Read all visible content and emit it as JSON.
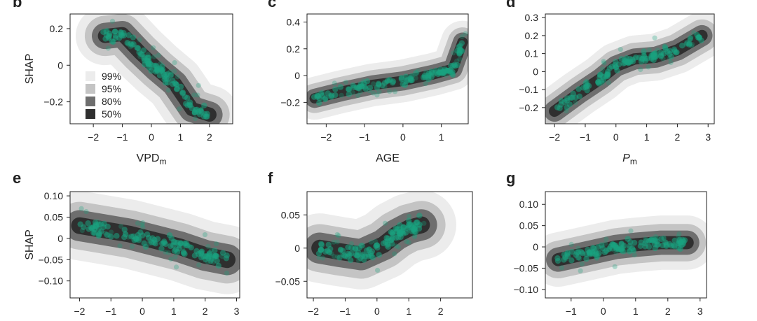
{
  "colors": {
    "band_99": "#ececec",
    "band_95": "#c4c4c4",
    "band_80": "#6e6e6e",
    "band_50": "#2f2f2f",
    "points": "#1aa37f",
    "axis": "#222222"
  },
  "legend": {
    "placement": "bottom-left of panel b",
    "entries": [
      "99%",
      "95%",
      "80%",
      "50%"
    ]
  },
  "chart_data": [
    {
      "type": "scatter",
      "panel": "b",
      "xlabel_main": "VPD",
      "xlabel_sub": "m",
      "xlabel_italic": false,
      "ylabel": "SHAP",
      "xlim": [
        -2.8,
        2.8
      ],
      "ylim": [
        -0.32,
        0.28
      ],
      "xticks": [
        -2,
        -1,
        0,
        1,
        2
      ],
      "xtick_labels": [
        "−2",
        "−1",
        "0",
        "1",
        "2"
      ],
      "yticks": [
        -0.2,
        0,
        0.2
      ],
      "ytick_labels": [
        "−0.2",
        "0",
        "0.2"
      ],
      "trend": [
        [
          -1.6,
          0.16
        ],
        [
          -1.0,
          0.17
        ],
        [
          -0.4,
          0.07
        ],
        [
          0.2,
          -0.02
        ],
        [
          0.8,
          -0.1
        ],
        [
          1.4,
          -0.24
        ],
        [
          2.0,
          -0.27
        ]
      ],
      "spread": 0.055
    },
    {
      "type": "scatter",
      "panel": "c",
      "xlabel_main": "AGE",
      "xlabel_sub": "",
      "xlabel_italic": false,
      "ylabel": "",
      "xlim": [
        -2.5,
        1.7
      ],
      "ylim": [
        -0.36,
        0.46
      ],
      "xticks": [
        -2,
        -1,
        0,
        1
      ],
      "xtick_labels": [
        "−2",
        "−1",
        "0",
        "1"
      ],
      "yticks": [
        -0.2,
        0,
        0.2,
        0.4
      ],
      "ytick_labels": [
        "−0.2",
        "0",
        "0.2",
        "0.4"
      ],
      "trend": [
        [
          -2.3,
          -0.17
        ],
        [
          -1.6,
          -0.12
        ],
        [
          -0.8,
          -0.07
        ],
        [
          0.0,
          -0.04
        ],
        [
          0.8,
          0.01
        ],
        [
          1.3,
          0.05
        ],
        [
          1.55,
          0.25
        ]
      ],
      "spread": 0.055
    },
    {
      "type": "scatter",
      "panel": "d",
      "xlabel_main": "P",
      "xlabel_sub": "m",
      "xlabel_italic": true,
      "ylabel": "",
      "xlim": [
        -2.3,
        3.2
      ],
      "ylim": [
        -0.29,
        0.32
      ],
      "xticks": [
        -2,
        -1,
        0,
        1,
        2,
        3
      ],
      "xtick_labels": [
        "−2",
        "−1",
        "0",
        "1",
        "2",
        "3"
      ],
      "yticks": [
        -0.2,
        -0.1,
        0,
        0.1,
        0.2,
        0.3
      ],
      "ytick_labels": [
        "−0.2",
        "−0.1",
        "0",
        "0.1",
        "0.2",
        "0.3"
      ],
      "trend": [
        [
          -2.0,
          -0.22
        ],
        [
          -1.2,
          -0.12
        ],
        [
          -0.5,
          -0.04
        ],
        [
          0.0,
          0.03
        ],
        [
          0.6,
          0.07
        ],
        [
          1.3,
          0.08
        ],
        [
          2.0,
          0.12
        ],
        [
          2.8,
          0.2
        ]
      ],
      "spread": 0.045
    },
    {
      "type": "scatter",
      "panel": "e",
      "xlabel_main": "",
      "xlabel_sub": "",
      "xlabel_italic": false,
      "ylabel": "SHAP",
      "xlim": [
        -2.3,
        3.1
      ],
      "ylim": [
        -0.14,
        0.11
      ],
      "xticks": [
        -2,
        -1,
        0,
        1,
        2,
        3
      ],
      "xtick_labels": [
        "−2",
        "−1",
        "0",
        "1",
        "2",
        "3"
      ],
      "yticks": [
        -0.1,
        -0.05,
        0,
        0.05,
        0.1
      ],
      "ytick_labels": [
        "−0.10",
        "−0.05",
        "0",
        "0.05",
        "0.10"
      ],
      "trend": [
        [
          -2.0,
          0.03
        ],
        [
          -1.2,
          0.02
        ],
        [
          -0.4,
          0.01
        ],
        [
          0.4,
          -0.005
        ],
        [
          1.2,
          -0.02
        ],
        [
          2.0,
          -0.04
        ],
        [
          2.7,
          -0.05
        ]
      ],
      "spread": 0.028
    },
    {
      "type": "scatter",
      "panel": "f",
      "xlabel_main": "",
      "xlabel_sub": "",
      "xlabel_italic": false,
      "ylabel": "",
      "xlim": [
        -2.2,
        3.0
      ],
      "ylim": [
        -0.075,
        0.085
      ],
      "xticks": [
        -2,
        -1,
        0,
        1,
        2
      ],
      "xtick_labels": [
        "−2",
        "−1",
        "0",
        "1",
        "2"
      ],
      "yticks": [
        -0.05,
        0,
        0.05
      ],
      "ytick_labels": [
        "−0.05",
        "0",
        "0.05"
      ],
      "trend": [
        [
          -1.8,
          0.0
        ],
        [
          -1.2,
          -0.005
        ],
        [
          -0.5,
          -0.01
        ],
        [
          0.2,
          0.005
        ],
        [
          0.6,
          0.02
        ],
        [
          1.0,
          0.03
        ],
        [
          1.4,
          0.035
        ]
      ],
      "spread": 0.018
    },
    {
      "type": "scatter",
      "panel": "g",
      "xlabel_main": "",
      "xlabel_sub": "",
      "xlabel_italic": false,
      "ylabel": "",
      "xlim": [
        -1.8,
        3.2
      ],
      "ylim": [
        -0.12,
        0.13
      ],
      "xticks": [
        -1,
        0,
        1,
        2,
        3
      ],
      "xtick_labels": [
        "−1",
        "0",
        "1",
        "2",
        "3"
      ],
      "yticks": [
        -0.1,
        -0.05,
        0,
        0.05,
        0.1
      ],
      "ytick_labels": [
        "−0.10",
        "−0.05",
        "0",
        "0.05",
        "0.10"
      ],
      "trend": [
        [
          -1.4,
          -0.03
        ],
        [
          -0.8,
          -0.02
        ],
        [
          -0.2,
          -0.01
        ],
        [
          0.4,
          0.0
        ],
        [
          1.0,
          0.005
        ],
        [
          1.8,
          0.01
        ],
        [
          2.6,
          0.01
        ]
      ],
      "spread": 0.022
    }
  ]
}
